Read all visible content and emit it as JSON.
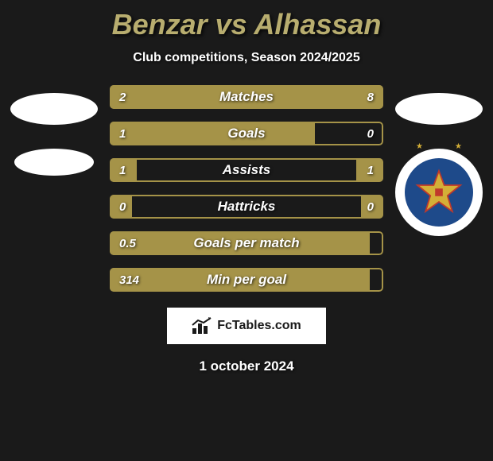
{
  "title": "Benzar vs Alhassan",
  "subtitle": "Club competitions, Season 2024/2025",
  "footer_label": "FcTables.com",
  "footer_date": "1 october 2024",
  "colors": {
    "background": "#1a1a1a",
    "accent": "#a59348",
    "title_color": "#b8ad6f",
    "text": "#ffffff",
    "badge_outer": "#ffffff",
    "badge_inner": "#1e4a8a",
    "star_fill": "#d4af37",
    "star_stroke": "#c0392b"
  },
  "typography": {
    "title_fontsize": 36,
    "subtitle_fontsize": 16,
    "bar_label_fontsize": 17,
    "bar_value_fontsize": 15,
    "footer_fontsize": 16,
    "date_fontsize": 17
  },
  "bars": [
    {
      "label": "Matches",
      "left_value": "2",
      "right_value": "8",
      "left_pct": 20,
      "right_pct": 80
    },
    {
      "label": "Goals",
      "left_value": "1",
      "right_value": "0",
      "left_pct": 75,
      "right_pct": 0
    },
    {
      "label": "Assists",
      "left_value": "1",
      "right_value": "1",
      "left_pct": 10,
      "right_pct": 10
    },
    {
      "label": "Hattricks",
      "left_value": "0",
      "right_value": "0",
      "left_pct": 8,
      "right_pct": 8
    },
    {
      "label": "Goals per match",
      "left_value": "0.5",
      "right_value": "",
      "left_pct": 95,
      "right_pct": 0
    },
    {
      "label": "Min per goal",
      "left_value": "314",
      "right_value": "",
      "left_pct": 95,
      "right_pct": 0
    }
  ]
}
